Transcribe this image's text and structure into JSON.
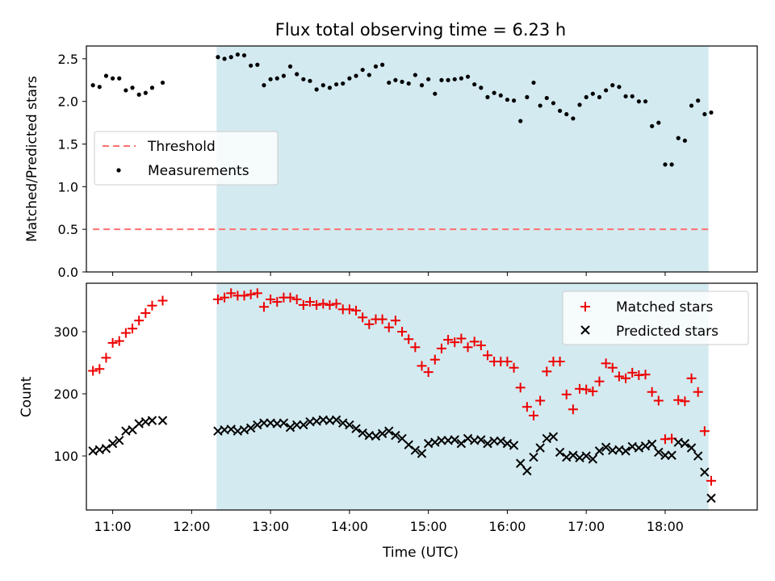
{
  "title": "Flux total observing time = 6.23 h",
  "colors": {
    "shade": "#d3eaf0",
    "threshold": "#ff7070",
    "matched": "#ee0000",
    "predicted": "#000000",
    "measurement": "#000000"
  },
  "chart_data": [
    {
      "type": "scatter",
      "ylabel": "Matched/Predicted stars",
      "ylim": [
        0,
        2.65
      ],
      "xlim": [
        "10:40",
        "19:10"
      ],
      "yticks": [
        "0.0",
        "0.5",
        "1.0",
        "1.5",
        "2.0",
        "2.5"
      ],
      "shaded_interval": [
        "12:19",
        "18:33"
      ],
      "legend": {
        "placement": "center-left",
        "threshold_label": "Threshold",
        "measurements_label": "Measurements"
      },
      "threshold": {
        "value": 0.5,
        "x": [
          "10:45",
          "18:33"
        ]
      },
      "measurements": {
        "x": [
          "10:45",
          "10:50",
          "10:55",
          "11:00",
          "11:05",
          "11:10",
          "11:15",
          "11:20",
          "11:25",
          "11:30",
          "11:38",
          "12:20",
          "12:25",
          "12:30",
          "12:35",
          "12:40",
          "12:45",
          "12:50",
          "12:55",
          "13:00",
          "13:05",
          "13:10",
          "13:15",
          "13:20",
          "13:25",
          "13:30",
          "13:35",
          "13:40",
          "13:45",
          "13:50",
          "13:55",
          "14:00",
          "14:05",
          "14:10",
          "14:15",
          "14:20",
          "14:25",
          "14:30",
          "14:35",
          "14:40",
          "14:45",
          "14:50",
          "14:55",
          "15:00",
          "15:05",
          "15:10",
          "15:15",
          "15:20",
          "15:25",
          "15:30",
          "15:35",
          "15:40",
          "15:45",
          "15:50",
          "15:55",
          "16:00",
          "16:05",
          "16:10",
          "16:15",
          "16:20",
          "16:25",
          "16:30",
          "16:35",
          "16:40",
          "16:45",
          "16:50",
          "16:55",
          "17:00",
          "17:05",
          "17:10",
          "17:15",
          "17:20",
          "17:25",
          "17:30",
          "17:35",
          "17:40",
          "17:45",
          "17:50",
          "17:55",
          "18:00",
          "18:05",
          "18:10",
          "18:15",
          "18:20",
          "18:25",
          "18:30",
          "18:35"
        ],
        "y": [
          2.19,
          2.17,
          2.3,
          2.27,
          2.27,
          2.13,
          2.16,
          2.08,
          2.1,
          2.16,
          2.22,
          2.52,
          2.5,
          2.52,
          2.55,
          2.54,
          2.42,
          2.43,
          2.19,
          2.26,
          2.27,
          2.3,
          2.41,
          2.32,
          2.26,
          2.24,
          2.14,
          2.19,
          2.16,
          2.2,
          2.21,
          2.27,
          2.3,
          2.37,
          2.31,
          2.41,
          2.43,
          2.22,
          2.25,
          2.23,
          2.21,
          2.31,
          2.19,
          2.26,
          2.09,
          2.25,
          2.25,
          2.26,
          2.27,
          2.29,
          2.2,
          2.16,
          2.05,
          2.1,
          2.07,
          2.02,
          2.01,
          1.77,
          2.05,
          2.22,
          1.95,
          2.04,
          1.98,
          1.89,
          1.85,
          1.8,
          1.96,
          2.05,
          2.09,
          2.05,
          2.13,
          2.19,
          2.17,
          2.06,
          2.06,
          2.0,
          2.0,
          1.71,
          1.75,
          1.26,
          1.26,
          1.57,
          1.54,
          1.95,
          2.01,
          1.85,
          1.87
        ]
      }
    },
    {
      "type": "scatter",
      "ylabel": "Count",
      "xlabel": "Time (UTC)",
      "ylim": [
        13,
        378
      ],
      "xlim": [
        "10:40",
        "19:10"
      ],
      "yticks": [
        "100",
        "200",
        "300"
      ],
      "xticks": [
        "11:00",
        "12:00",
        "13:00",
        "14:00",
        "15:00",
        "16:00",
        "17:00",
        "18:00"
      ],
      "shaded_interval": [
        "12:19",
        "18:33"
      ],
      "legend": {
        "placement": "top-right",
        "matched_label": "Matched stars",
        "predicted_label": "Predicted stars"
      },
      "series": [
        {
          "name": "Matched stars",
          "marker": "plus",
          "x": [
            "10:45",
            "10:50",
            "10:55",
            "11:00",
            "11:05",
            "11:10",
            "11:15",
            "11:20",
            "11:25",
            "11:30",
            "11:38",
            "12:20",
            "12:25",
            "12:30",
            "12:35",
            "12:40",
            "12:45",
            "12:50",
            "12:55",
            "13:00",
            "13:05",
            "13:10",
            "13:15",
            "13:20",
            "13:25",
            "13:30",
            "13:35",
            "13:40",
            "13:45",
            "13:50",
            "13:55",
            "14:00",
            "14:05",
            "14:10",
            "14:15",
            "14:20",
            "14:25",
            "14:30",
            "14:35",
            "14:40",
            "14:45",
            "14:50",
            "14:55",
            "15:00",
            "15:05",
            "15:10",
            "15:15",
            "15:20",
            "15:25",
            "15:30",
            "15:35",
            "15:40",
            "15:45",
            "15:50",
            "15:55",
            "16:00",
            "16:05",
            "16:10",
            "16:15",
            "16:20",
            "16:25",
            "16:30",
            "16:35",
            "16:40",
            "16:45",
            "16:50",
            "16:55",
            "17:00",
            "17:05",
            "17:10",
            "17:15",
            "17:20",
            "17:25",
            "17:30",
            "17:35",
            "17:40",
            "17:45",
            "17:50",
            "17:55",
            "18:00",
            "18:05",
            "18:10",
            "18:15",
            "18:20",
            "18:25",
            "18:30",
            "18:35"
          ],
          "y": [
            237,
            240,
            258,
            282,
            285,
            298,
            305,
            318,
            330,
            342,
            350,
            352,
            355,
            362,
            358,
            358,
            360,
            362,
            340,
            352,
            348,
            355,
            355,
            352,
            343,
            348,
            343,
            345,
            343,
            345,
            336,
            336,
            334,
            323,
            312,
            320,
            320,
            307,
            318,
            300,
            288,
            275,
            245,
            235,
            255,
            273,
            287,
            283,
            289,
            275,
            284,
            278,
            262,
            252,
            252,
            252,
            242,
            210,
            179,
            165,
            189,
            236,
            252,
            252,
            199,
            175,
            208,
            207,
            204,
            220,
            249,
            242,
            228,
            225,
            234,
            230,
            231,
            203,
            189,
            127,
            128,
            190,
            188,
            225,
            203,
            140,
            60
          ]
        },
        {
          "name": "Predicted stars",
          "marker": "x",
          "x": [
            "10:45",
            "10:50",
            "10:55",
            "11:00",
            "11:05",
            "11:10",
            "11:15",
            "11:20",
            "11:25",
            "11:30",
            "11:38",
            "12:20",
            "12:25",
            "12:30",
            "12:35",
            "12:40",
            "12:45",
            "12:50",
            "12:55",
            "13:00",
            "13:05",
            "13:10",
            "13:15",
            "13:20",
            "13:25",
            "13:30",
            "13:35",
            "13:40",
            "13:45",
            "13:50",
            "13:55",
            "14:00",
            "14:05",
            "14:10",
            "14:15",
            "14:20",
            "14:25",
            "14:30",
            "14:35",
            "14:40",
            "14:45",
            "14:50",
            "14:55",
            "15:00",
            "15:05",
            "15:10",
            "15:15",
            "15:20",
            "15:25",
            "15:30",
            "15:35",
            "15:40",
            "15:45",
            "15:50",
            "15:55",
            "16:00",
            "16:05",
            "16:10",
            "16:15",
            "16:20",
            "16:25",
            "16:30",
            "16:35",
            "16:40",
            "16:45",
            "16:50",
            "16:55",
            "17:00",
            "17:05",
            "17:10",
            "17:15",
            "17:20",
            "17:25",
            "17:30",
            "17:35",
            "17:40",
            "17:45",
            "17:50",
            "17:55",
            "18:00",
            "18:05",
            "18:10",
            "18:15",
            "18:20",
            "18:25",
            "18:30",
            "18:35"
          ],
          "y": [
            108,
            110,
            112,
            120,
            125,
            140,
            142,
            152,
            155,
            157,
            157,
            140,
            142,
            143,
            140,
            142,
            145,
            150,
            153,
            153,
            152,
            153,
            146,
            150,
            150,
            155,
            156,
            158,
            157,
            158,
            153,
            150,
            144,
            137,
            133,
            132,
            136,
            140,
            133,
            128,
            118,
            109,
            104,
            120,
            122,
            125,
            125,
            126,
            120,
            128,
            125,
            126,
            120,
            124,
            124,
            120,
            117,
            88,
            76,
            98,
            113,
            128,
            131,
            106,
            98,
            101,
            97,
            100,
            95,
            108,
            114,
            109,
            110,
            108,
            115,
            113,
            116,
            119,
            106,
            101,
            101,
            122,
            120,
            113,
            100,
            74,
            32
          ]
        }
      ]
    }
  ]
}
